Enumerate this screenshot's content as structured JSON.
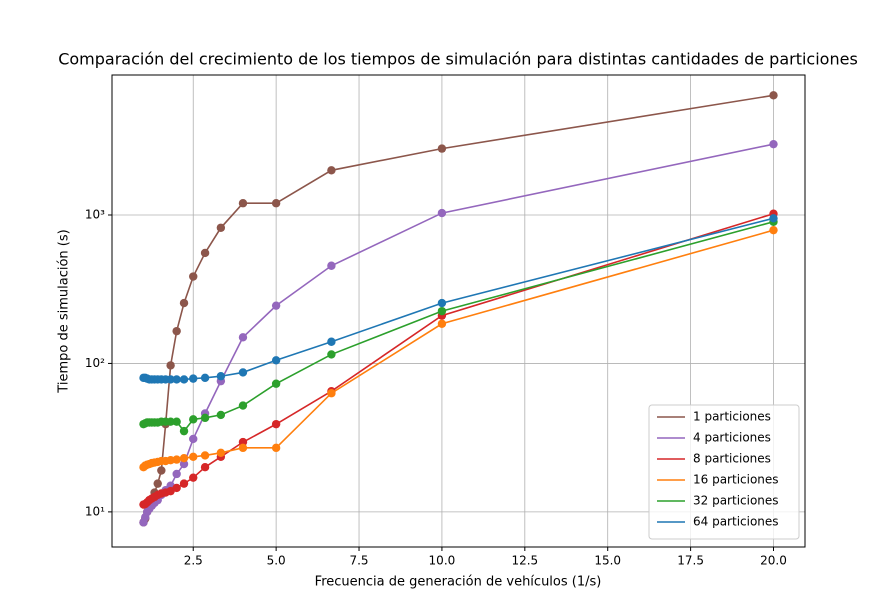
{
  "chart_data": {
    "type": "line",
    "title": "Comparación del crecimiento de los tiempos de simulación para distintas cantidades de particiones",
    "xlabel": "Frecuencia de generación de vehículos (1/s)",
    "ylabel": "Tiempo de simulación (s)",
    "x": [
      1,
      1.053,
      1.111,
      1.176,
      1.25,
      1.333,
      1.429,
      1.538,
      1.667,
      1.818,
      2,
      2.222,
      2.5,
      2.857,
      3.333,
      4,
      5,
      6.667,
      10,
      20
    ],
    "series": [
      {
        "name": "1 particiones",
        "color": "#8c564b",
        "values": [
          8.5,
          9,
          10,
          11,
          12,
          13.5,
          15.5,
          19,
          39,
          97,
          165,
          255,
          385,
          555,
          820,
          1200,
          1200,
          2000,
          2800,
          6400
        ]
      },
      {
        "name": "4 particiones",
        "color": "#9467bd",
        "values": [
          8.5,
          9.2,
          10,
          10.5,
          11,
          11.5,
          12,
          13,
          14,
          15,
          18,
          21,
          31,
          46,
          76,
          150,
          245,
          455,
          1030,
          3000
        ]
      },
      {
        "name": "8 particiones",
        "color": "#d62728",
        "values": [
          11.2,
          11.3,
          11.6,
          12,
          12.3,
          12.6,
          13,
          13.3,
          13.5,
          13.8,
          14.5,
          15.5,
          17,
          20,
          23.5,
          29.5,
          39,
          65,
          210,
          1020
        ]
      },
      {
        "name": "16 particiones",
        "color": "#ff7f0e",
        "values": [
          20,
          20.5,
          20.8,
          21,
          21.3,
          21.5,
          21.7,
          22,
          22,
          22.3,
          22.5,
          23,
          23.5,
          24,
          25,
          27,
          27,
          63,
          185,
          790
        ]
      },
      {
        "name": "32 particiones",
        "color": "#2ca02c",
        "values": [
          39,
          39.5,
          40,
          40,
          40,
          40,
          40,
          40.5,
          40.5,
          40.5,
          40.5,
          35,
          42,
          43,
          45,
          52,
          73,
          115,
          225,
          900
        ]
      },
      {
        "name": "64 particiones",
        "color": "#1f77b4",
        "values": [
          80,
          80,
          79,
          78,
          78,
          78,
          78,
          78,
          78,
          78,
          78,
          78,
          79,
          80,
          82,
          87,
          105,
          140,
          255,
          950
        ]
      }
    ],
    "xlim": [
      0.05,
      20.95
    ],
    "ylim": [
      5.8,
      8770
    ],
    "ylog": true,
    "grid": true,
    "legend": "lower right",
    "xticks": [
      2.5,
      {
        "value": 5,
        "label": "5.0"
      },
      7.5,
      {
        "value": 10,
        "label": "10.0"
      },
      12.5,
      {
        "value": 15,
        "label": "15.0"
      },
      17.5,
      {
        "value": 20,
        "label": "20.0"
      }
    ],
    "yticks": [
      {
        "value": 10,
        "label": "10¹"
      },
      {
        "value": 100,
        "label": "10²"
      },
      {
        "value": 1000,
        "label": "10³"
      }
    ]
  }
}
